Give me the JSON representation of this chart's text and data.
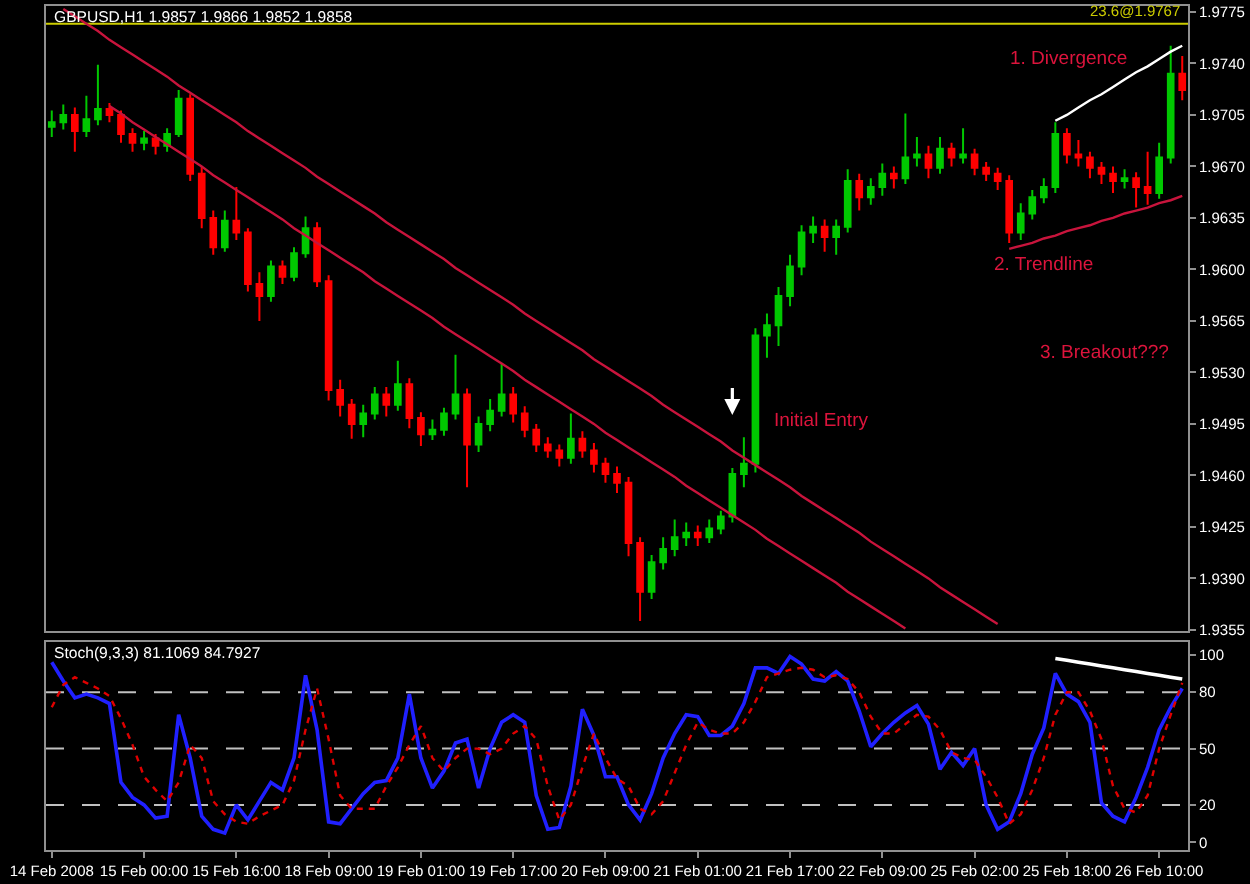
{
  "chart_data": [
    {
      "type": "candlestick",
      "title": "GBPUSD,H1 1.9857 1.9866 1.9852 1.9858",
      "categories": [
        null,
        null,
        null,
        null,
        null,
        null,
        null,
        null,
        null,
        null,
        null,
        null,
        null,
        null,
        null,
        null,
        null,
        null,
        null,
        null,
        null,
        null,
        null,
        null,
        null,
        null,
        null,
        null,
        null,
        null,
        null,
        null,
        null,
        null,
        null,
        null,
        null,
        null,
        null,
        null,
        null,
        null,
        null,
        null,
        null,
        null,
        null,
        null,
        null,
        null,
        null,
        null,
        null,
        null,
        null,
        null,
        null,
        null,
        null,
        null,
        null,
        null,
        null,
        null,
        null,
        null,
        null,
        null,
        null,
        null,
        null,
        null,
        null,
        null,
        null,
        null,
        null,
        null,
        null,
        null,
        null,
        null,
        null,
        null,
        null,
        null,
        null,
        null,
        null,
        null,
        null,
        null,
        null,
        null,
        null,
        null,
        null,
        null,
        null
      ],
      "ohlc": [
        [
          1.9697,
          1.9708,
          1.969,
          1.97
        ],
        [
          1.97,
          1.9712,
          1.9695,
          1.9705
        ],
        [
          1.9705,
          1.971,
          1.968,
          1.9694
        ],
        [
          1.9694,
          1.9718,
          1.969,
          1.9702
        ],
        [
          1.9702,
          1.9739,
          1.9698,
          1.9709
        ],
        [
          1.9709,
          1.9713,
          1.97,
          1.9705
        ],
        [
          1.9705,
          1.9708,
          1.9686,
          1.9692
        ],
        [
          1.9692,
          1.9696,
          1.968,
          1.9686
        ],
        [
          1.9686,
          1.9694,
          1.9681,
          1.9689
        ],
        [
          1.9689,
          1.9692,
          1.9678,
          1.9684
        ],
        [
          1.9684,
          1.9696,
          1.968,
          1.9692
        ],
        [
          1.9692,
          1.9722,
          1.969,
          1.9716
        ],
        [
          1.9716,
          1.9719,
          1.966,
          1.9665
        ],
        [
          1.9665,
          1.967,
          1.9628,
          1.9635
        ],
        [
          1.9635,
          1.964,
          1.961,
          1.9615
        ],
        [
          1.9615,
          1.964,
          1.9612,
          1.9633
        ],
        [
          1.9633,
          1.9656,
          1.962,
          1.9625
        ],
        [
          1.9625,
          1.9628,
          1.9585,
          1.959
        ],
        [
          1.959,
          1.9598,
          1.9565,
          1.9582
        ],
        [
          1.9582,
          1.9606,
          1.9578,
          1.9602
        ],
        [
          1.9602,
          1.9606,
          1.959,
          1.9595
        ],
        [
          1.9595,
          1.9615,
          1.9592,
          1.9611
        ],
        [
          1.9611,
          1.9636,
          1.9608,
          1.9628
        ],
        [
          1.9628,
          1.9632,
          1.9588,
          1.9592
        ],
        [
          1.9592,
          1.9596,
          1.9511,
          1.9518
        ],
        [
          1.9518,
          1.9525,
          1.95,
          1.9508
        ],
        [
          1.9508,
          1.9512,
          1.9485,
          1.9495
        ],
        [
          1.9495,
          1.9508,
          1.9486,
          1.9502
        ],
        [
          1.9502,
          1.952,
          1.9498,
          1.9515
        ],
        [
          1.9515,
          1.952,
          1.95,
          1.9508
        ],
        [
          1.9508,
          1.9538,
          1.9504,
          1.9522
        ],
        [
          1.9522,
          1.9526,
          1.9492,
          1.9499
        ],
        [
          1.9499,
          1.9503,
          1.948,
          1.9488
        ],
        [
          1.9488,
          1.9498,
          1.9484,
          1.9491
        ],
        [
          1.9491,
          1.9506,
          1.9487,
          1.9502
        ],
        [
          1.9502,
          1.9542,
          1.9498,
          1.9515
        ],
        [
          1.9515,
          1.9519,
          1.9452,
          1.9481
        ],
        [
          1.9481,
          1.95,
          1.9476,
          1.9495
        ],
        [
          1.9495,
          1.9512,
          1.949,
          1.9504
        ],
        [
          1.9504,
          1.9536,
          1.95,
          1.9515
        ],
        [
          1.9515,
          1.952,
          1.9496,
          1.9502
        ],
        [
          1.9502,
          1.9507,
          1.9486,
          1.9491
        ],
        [
          1.9491,
          1.9495,
          1.9476,
          1.9481
        ],
        [
          1.9481,
          1.9486,
          1.9472,
          1.9477
        ],
        [
          1.9477,
          1.9481,
          1.9466,
          1.9472
        ],
        [
          1.9472,
          1.9502,
          1.9468,
          1.9485
        ],
        [
          1.9485,
          1.949,
          1.9472,
          1.9477
        ],
        [
          1.9477,
          1.9482,
          1.9462,
          1.9468
        ],
        [
          1.9468,
          1.9472,
          1.9455,
          1.9461
        ],
        [
          1.9461,
          1.9466,
          1.9448,
          1.9455
        ],
        [
          1.9455,
          1.9459,
          1.9405,
          1.9414
        ],
        [
          1.9414,
          1.9418,
          1.9361,
          1.9381
        ],
        [
          1.9381,
          1.9406,
          1.9376,
          1.9401
        ],
        [
          1.9401,
          1.9418,
          1.9396,
          1.941
        ],
        [
          1.941,
          1.943,
          1.9405,
          1.9418
        ],
        [
          1.9418,
          1.9428,
          1.9412,
          1.9421
        ],
        [
          1.9421,
          1.9426,
          1.9412,
          1.9418
        ],
        [
          1.9418,
          1.943,
          1.9414,
          1.9424
        ],
        [
          1.9424,
          1.9436,
          1.942,
          1.9432
        ],
        [
          1.9432,
          1.9465,
          1.9428,
          1.9461
        ],
        [
          1.9461,
          1.9486,
          1.9452,
          1.9468
        ],
        [
          1.9468,
          1.956,
          1.9462,
          1.9555
        ],
        [
          1.9555,
          1.957,
          1.954,
          1.9562
        ],
        [
          1.9562,
          1.9588,
          1.9548,
          1.9582
        ],
        [
          1.9582,
          1.961,
          1.9575,
          1.9602
        ],
        [
          1.9602,
          1.963,
          1.9596,
          1.9625
        ],
        [
          1.9625,
          1.9636,
          1.9618,
          1.9629
        ],
        [
          1.9629,
          1.9634,
          1.9612,
          1.9622
        ],
        [
          1.9622,
          1.9634,
          1.961,
          1.9629
        ],
        [
          1.9629,
          1.9668,
          1.9625,
          1.966
        ],
        [
          1.966,
          1.9665,
          1.964,
          1.9649
        ],
        [
          1.9649,
          1.9662,
          1.9644,
          1.9656
        ],
        [
          1.9656,
          1.9672,
          1.965,
          1.9665
        ],
        [
          1.9665,
          1.967,
          1.9655,
          1.9662
        ],
        [
          1.9662,
          1.9706,
          1.9658,
          1.9676
        ],
        [
          1.9676,
          1.969,
          1.967,
          1.9678
        ],
        [
          1.9678,
          1.9684,
          1.9662,
          1.9669
        ],
        [
          1.9669,
          1.969,
          1.9665,
          1.9682
        ],
        [
          1.9682,
          1.9686,
          1.967,
          1.9676
        ],
        [
          1.9676,
          1.9696,
          1.9672,
          1.9678
        ],
        [
          1.9678,
          1.9682,
          1.9664,
          1.9669
        ],
        [
          1.9669,
          1.9673,
          1.966,
          1.9665
        ],
        [
          1.9665,
          1.9669,
          1.9654,
          1.966
        ],
        [
          1.966,
          1.9664,
          1.9618,
          1.9625
        ],
        [
          1.9625,
          1.9645,
          1.962,
          1.9638
        ],
        [
          1.9638,
          1.9654,
          1.9634,
          1.9649
        ],
        [
          1.9649,
          1.9662,
          1.9645,
          1.9656
        ],
        [
          1.9656,
          1.97,
          1.9652,
          1.9692
        ],
        [
          1.9692,
          1.9696,
          1.9672,
          1.9678
        ],
        [
          1.9678,
          1.9688,
          1.967,
          1.9676
        ],
        [
          1.9676,
          1.968,
          1.9662,
          1.9669
        ],
        [
          1.9669,
          1.9673,
          1.9658,
          1.9665
        ],
        [
          1.9665,
          1.967,
          1.9652,
          1.966
        ],
        [
          1.966,
          1.9668,
          1.9655,
          1.9662
        ],
        [
          1.9662,
          1.9666,
          1.9642,
          1.9656
        ],
        [
          1.9656,
          1.968,
          1.9644,
          1.9652
        ],
        [
          1.9652,
          1.9686,
          1.9648,
          1.9676
        ],
        [
          1.9676,
          1.9752,
          1.9672,
          1.9733
        ],
        [
          1.9733,
          1.9745,
          1.9715,
          1.9722
        ]
      ],
      "colors": [
        "#00c800",
        "#00c800",
        "#ff0000",
        "#00c800",
        "#00c800",
        "#ff0000",
        "#ff0000",
        "#ff0000",
        "#00c800",
        "#ff0000",
        "#00c800",
        "#00c800",
        "#ff0000",
        "#ff0000",
        "#ff0000",
        "#00c800",
        "#ff0000",
        "#ff0000",
        "#ff0000",
        "#00c800",
        "#ff0000",
        "#00c800",
        "#00c800",
        "#ff0000",
        "#ff0000",
        "#ff0000",
        "#ff0000",
        "#00c800",
        "#00c800",
        "#ff0000",
        "#00c800",
        "#ff0000",
        "#ff0000",
        "#00c800",
        "#00c800",
        "#00c800",
        "#ff0000",
        "#00c800",
        "#00c800",
        "#00c800",
        "#ff0000",
        "#ff0000",
        "#ff0000",
        "#ff0000",
        "#ff0000",
        "#00c800",
        "#ff0000",
        "#ff0000",
        "#ff0000",
        "#ff0000",
        "#ff0000",
        "#ff0000",
        "#00c800",
        "#00c800",
        "#00c800",
        "#00c800",
        "#ff0000",
        "#00c800",
        "#00c800",
        "#00c800",
        "#00c800",
        "#00c800",
        "#00c800",
        "#00c800",
        "#00c800",
        "#00c800",
        "#00c800",
        "#ff0000",
        "#00c800",
        "#00c800",
        "#ff0000",
        "#00c800",
        "#00c800",
        "#ff0000",
        "#00c800",
        "#00c800",
        "#ff0000",
        "#00c800",
        "#ff0000",
        "#00c800",
        "#ff0000",
        "#ff0000",
        "#ff0000",
        "#ff0000",
        "#00c800",
        "#00c800",
        "#00c800",
        "#00c800",
        "#ff0000",
        "#ff0000",
        "#ff0000",
        "#ff0000",
        "#ff0000",
        "#00c800",
        "#ff0000",
        "#ff0000",
        "#00c800",
        "#00c800",
        "#ff0000"
      ],
      "series": [
        {
          "type": "line",
          "color": "#c8143c",
          "values": [
            null,
            1.9777,
            1.9772,
            1.9767,
            1.9762,
            1.9756,
            1.9751,
            1.9746,
            1.9741,
            1.9736,
            1.9731,
            1.9725,
            1.972,
            1.9715,
            1.971,
            1.9705,
            1.97,
            1.9694,
            1.9689,
            1.9684,
            1.9679,
            1.9674,
            1.9669,
            1.9663,
            1.9658,
            1.9653,
            1.9648,
            1.9643,
            1.9638,
            1.9632,
            1.9627,
            1.9622,
            1.9617,
            1.9612,
            1.9607,
            1.9601,
            1.9596,
            1.9591,
            1.9586,
            1.9581,
            1.9576,
            1.957,
            1.9565,
            1.956,
            1.9555,
            1.955,
            1.9545,
            1.9539,
            1.9534,
            1.9529,
            1.9524,
            1.9519,
            1.9514,
            1.9508,
            1.9503,
            1.9498,
            1.9493,
            1.9488,
            1.9483,
            1.9477,
            1.9472,
            1.9467,
            1.9462,
            1.9457,
            1.9452,
            1.9446,
            1.9441,
            1.9436,
            1.9431,
            1.9426,
            1.9421,
            1.9415,
            1.941,
            1.9405,
            1.94,
            1.9395,
            1.939,
            1.9384,
            1.9379,
            1.9374,
            1.9369,
            1.9364,
            1.9359,
            null,
            null,
            null,
            null,
            null,
            null,
            null,
            null,
            null,
            null,
            null,
            null,
            null,
            null,
            null,
            null
          ]
        },
        {
          "type": "line",
          "color": "#c8143c",
          "values": [
            null,
            null,
            null,
            null,
            null,
            1.9711,
            1.9706,
            1.97,
            1.9695,
            1.969,
            1.9685,
            1.968,
            1.9675,
            1.967,
            1.9664,
            1.9659,
            1.9654,
            1.9649,
            1.9644,
            1.9639,
            1.9634,
            1.9628,
            1.9623,
            1.9618,
            1.9613,
            1.9608,
            1.9603,
            1.9598,
            1.9592,
            1.9587,
            1.9582,
            1.9577,
            1.9572,
            1.9567,
            1.9561,
            1.9556,
            1.9551,
            1.9546,
            1.9541,
            1.9536,
            1.9531,
            1.9525,
            1.952,
            1.9515,
            1.951,
            1.9505,
            1.95,
            1.9495,
            1.9489,
            1.9484,
            1.9479,
            1.9474,
            1.9469,
            1.9464,
            1.9459,
            1.9453,
            1.9448,
            1.9443,
            1.9438,
            1.9433,
            1.9428,
            1.9423,
            1.9417,
            1.9412,
            1.9407,
            1.9402,
            1.9397,
            1.9392,
            1.9387,
            1.9381,
            1.9376,
            1.9371,
            1.9366,
            1.9361,
            1.9356,
            null,
            null,
            null,
            null,
            null,
            null,
            null,
            null,
            null,
            null,
            null,
            null,
            null,
            null,
            null,
            null,
            null,
            null,
            null,
            null,
            null,
            null,
            null,
            null
          ]
        },
        {
          "type": "line",
          "color": "#ffffff",
          "values": [
            null,
            null,
            null,
            null,
            null,
            null,
            null,
            null,
            null,
            null,
            null,
            null,
            null,
            null,
            null,
            null,
            null,
            null,
            null,
            null,
            null,
            null,
            null,
            null,
            null,
            null,
            null,
            null,
            null,
            null,
            null,
            null,
            null,
            null,
            null,
            null,
            null,
            null,
            null,
            null,
            null,
            null,
            null,
            null,
            null,
            null,
            null,
            null,
            null,
            null,
            null,
            null,
            null,
            null,
            null,
            null,
            null,
            null,
            null,
            null,
            null,
            null,
            null,
            null,
            null,
            null,
            null,
            null,
            null,
            null,
            null,
            null,
            null,
            null,
            null,
            null,
            null,
            null,
            null,
            null,
            null,
            null,
            null,
            null,
            null,
            null,
            null,
            1.9701,
            1.9705,
            1.971,
            1.9715,
            1.9719,
            1.9724,
            1.9729,
            1.9734,
            1.9738,
            1.9743,
            1.9748,
            1.9752
          ]
        },
        {
          "type": "line",
          "color": "#c8143c",
          "values": [
            null,
            null,
            null,
            null,
            null,
            null,
            null,
            null,
            null,
            null,
            null,
            null,
            null,
            null,
            null,
            null,
            null,
            null,
            null,
            null,
            null,
            null,
            null,
            null,
            null,
            null,
            null,
            null,
            null,
            null,
            null,
            null,
            null,
            null,
            null,
            null,
            null,
            null,
            null,
            null,
            null,
            null,
            null,
            null,
            null,
            null,
            null,
            null,
            null,
            null,
            null,
            null,
            null,
            null,
            null,
            null,
            null,
            null,
            null,
            null,
            null,
            null,
            null,
            null,
            null,
            null,
            null,
            null,
            null,
            null,
            null,
            null,
            null,
            null,
            null,
            null,
            null,
            null,
            null,
            null,
            null,
            null,
            null,
            1.9614,
            1.9616,
            1.9618,
            1.9621,
            1.9623,
            1.9626,
            1.9628,
            1.963,
            1.9633,
            1.9635,
            1.9638,
            1.964,
            1.9642,
            1.9645,
            1.9647,
            1.965
          ]
        }
      ],
      "ylim": [
        1.9354,
        1.9779
      ],
      "yticks": [
        1.9355,
        {
          "value": 1.939,
          "label": "1.9390"
        },
        1.9425,
        {
          "value": 1.946,
          "label": "1.9460"
        },
        1.9495,
        {
          "value": 1.953,
          "label": "1.9530"
        },
        1.9565,
        {
          "value": 1.96,
          "label": "1.9600"
        },
        1.9635,
        {
          "value": 1.967,
          "label": "1.9670"
        },
        1.9705,
        {
          "value": 1.974,
          "label": "1.9740"
        },
        1.9775
      ],
      "tick_labels": "y",
      "ref_lines": [
        {
          "axis": "y",
          "value": 1.9767,
          "label": "23.6@1.9767",
          "color": "#cccc00"
        }
      ],
      "annotations": [
        "Initial Entry",
        "1. Divergence",
        "2. Trendline",
        "3. Breakout???"
      ]
    },
    {
      "type": "line",
      "title": "Stoch(9,3,3) 81.1069 84.7927",
      "categories": [
        "14 Feb 2008",
        null,
        null,
        null,
        null,
        null,
        null,
        null,
        "15 Feb 00:00",
        null,
        null,
        null,
        null,
        null,
        null,
        null,
        "15 Feb 16:00",
        null,
        null,
        null,
        null,
        null,
        null,
        null,
        "18 Feb 09:00",
        null,
        null,
        null,
        null,
        null,
        null,
        null,
        "19 Feb 01:00",
        null,
        null,
        null,
        null,
        null,
        null,
        null,
        "19 Feb 17:00",
        null,
        null,
        null,
        null,
        null,
        null,
        null,
        "20 Feb 09:00",
        null,
        null,
        null,
        null,
        null,
        null,
        null,
        "21 Feb 01:00",
        null,
        null,
        null,
        null,
        null,
        null,
        null,
        "21 Feb 17:00",
        null,
        null,
        null,
        null,
        null,
        null,
        null,
        "22 Feb 09:00",
        null,
        null,
        null,
        null,
        null,
        null,
        null,
        "25 Feb 02:00",
        null,
        null,
        null,
        null,
        null,
        null,
        null,
        "25 Feb 18:00",
        null,
        null,
        null,
        null,
        null,
        null,
        null,
        "26 Feb 10:00",
        null,
        null
      ],
      "series": [
        {
          "color": "#2020ff",
          "values": [
            96,
            86,
            77,
            79,
            77,
            74,
            32,
            24,
            20,
            13,
            14,
            68,
            45,
            14,
            7,
            5,
            20,
            12,
            22,
            32,
            28,
            45,
            89,
            60,
            11,
            10,
            18,
            26,
            32,
            33,
            45,
            79,
            45,
            29,
            38,
            53,
            55,
            29,
            50,
            64,
            68,
            64,
            25,
            7,
            8,
            30,
            71,
            57,
            35,
            35,
            20,
            12,
            26,
            45,
            58,
            68,
            67,
            57,
            57,
            62,
            74,
            93,
            93,
            90,
            99,
            95,
            87,
            86,
            91,
            86,
            70,
            51,
            58,
            64,
            69,
            73,
            63,
            39,
            48,
            41,
            50,
            20,
            7,
            11,
            26,
            47,
            61,
            90,
            79,
            75,
            64,
            21,
            14,
            11,
            24,
            40,
            60,
            72,
            82
          ]
        },
        {
          "color": "#e00000",
          "line_style": "dotted",
          "values": [
            72,
            84,
            88,
            85,
            82,
            78,
            66,
            52,
            35,
            28,
            22,
            32,
            52,
            45,
            22,
            15,
            11,
            10,
            14,
            17,
            20,
            33,
            60,
            82,
            55,
            25,
            18,
            18,
            18,
            30,
            40,
            52,
            62,
            45,
            38,
            45,
            50,
            50,
            47,
            50,
            58,
            62,
            55,
            30,
            12,
            20,
            40,
            58,
            45,
            34,
            30,
            18,
            15,
            22,
            37,
            52,
            64,
            60,
            58,
            58,
            64,
            75,
            88,
            90,
            92,
            93,
            92,
            88,
            89,
            87,
            80,
            67,
            58,
            58,
            63,
            68,
            67,
            60,
            48,
            45,
            44,
            35,
            24,
            10,
            15,
            28,
            45,
            68,
            80,
            80,
            70,
            55,
            30,
            18,
            16,
            25,
            50,
            68,
            85
          ]
        },
        {
          "color": "#ffffff",
          "values": [
            null,
            null,
            null,
            null,
            null,
            null,
            null,
            null,
            null,
            null,
            null,
            null,
            null,
            null,
            null,
            null,
            null,
            null,
            null,
            null,
            null,
            null,
            null,
            null,
            null,
            null,
            null,
            null,
            null,
            null,
            null,
            null,
            null,
            null,
            null,
            null,
            null,
            null,
            null,
            null,
            null,
            null,
            null,
            null,
            null,
            null,
            null,
            null,
            null,
            null,
            null,
            null,
            null,
            null,
            null,
            null,
            null,
            null,
            null,
            null,
            null,
            null,
            null,
            null,
            null,
            null,
            null,
            null,
            null,
            null,
            null,
            null,
            null,
            null,
            null,
            null,
            null,
            null,
            null,
            null,
            null,
            null,
            null,
            null,
            null,
            null,
            null,
            98,
            97,
            96,
            95,
            94,
            93,
            92,
            91,
            90,
            89,
            88,
            87
          ]
        }
      ],
      "ylim": [
        -4,
        107
      ],
      "yticks": [
        0,
        20,
        50,
        80,
        100
      ],
      "ref_lines": [
        {
          "axis": "y",
          "value": 80,
          "line_style": "dashed",
          "color": "#c0c0c0"
        },
        {
          "axis": "y",
          "value": 50,
          "line_style": "dashed",
          "color": "#c0c0c0"
        },
        {
          "axis": "y",
          "value": 20,
          "line_style": "dashed",
          "color": "#c0c0c0"
        }
      ]
    }
  ]
}
